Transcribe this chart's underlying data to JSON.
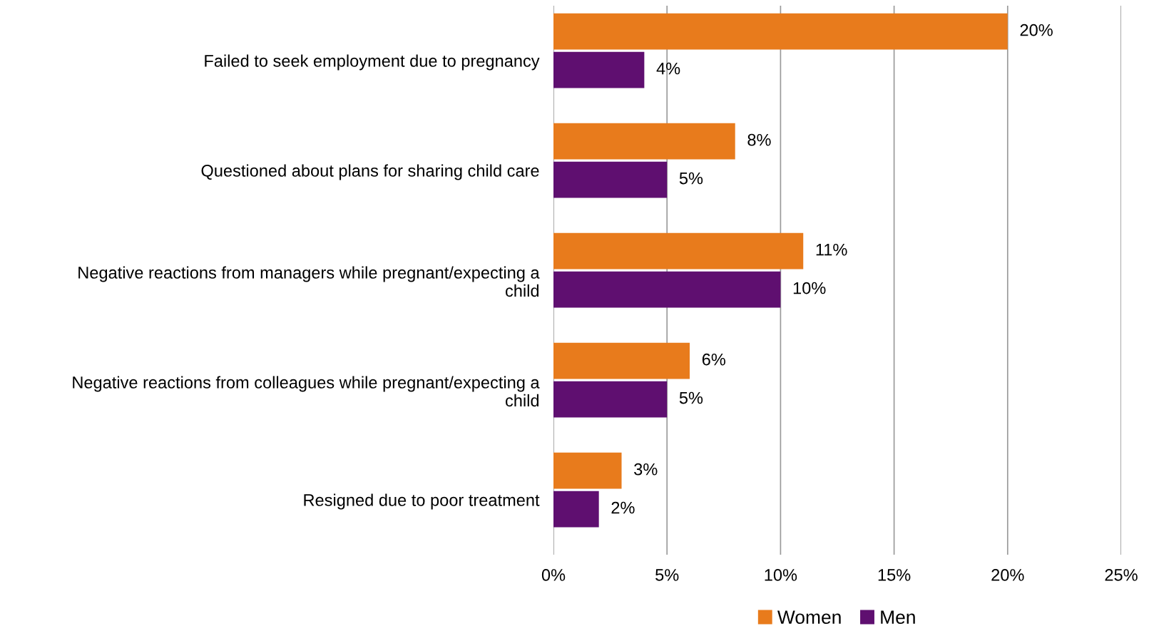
{
  "chart_data": {
    "type": "bar",
    "orientation": "horizontal",
    "categories": [
      "Failed to seek employment due to pregnancy",
      "Questioned about plans for sharing child care",
      "Negative reactions from managers while pregnant/expecting a\nchild",
      "Negative reactions from colleagues while pregnant/expecting a\nchild",
      "Resigned due to poor treatment"
    ],
    "series": [
      {
        "name": "Women",
        "color": "#e87b1c",
        "values": [
          20,
          8,
          11,
          6,
          3
        ],
        "value_labels": [
          "20%",
          "8%",
          "11%",
          "6%",
          "3%"
        ]
      },
      {
        "name": "Men",
        "color": "#5f0f70",
        "values": [
          4,
          5,
          10,
          5,
          2
        ],
        "value_labels": [
          "4%",
          "5%",
          "10%",
          "5%",
          "2%"
        ]
      }
    ],
    "xlim": [
      0,
      25
    ],
    "xticks": [
      {
        "value": 0,
        "label": "0%"
      },
      {
        "value": 5,
        "label": "5%"
      },
      {
        "value": 10,
        "label": "10%"
      },
      {
        "value": 15,
        "label": "15%"
      },
      {
        "value": 20,
        "label": "20%"
      },
      {
        "value": 25,
        "label": "25%"
      }
    ],
    "grid": "x",
    "legend": "bottom"
  }
}
